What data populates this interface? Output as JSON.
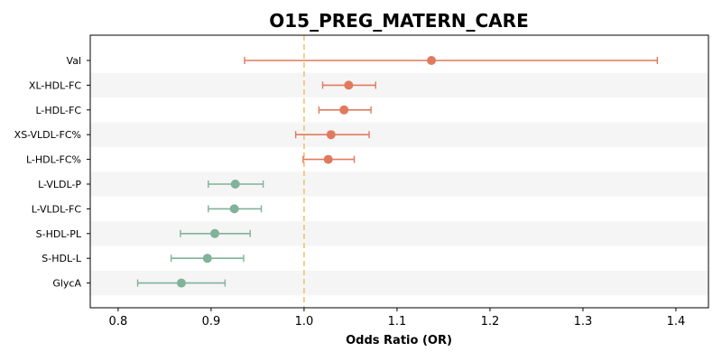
{
  "chart_data": {
    "type": "scatter",
    "title": "O15_PREG_MATERN_CARE",
    "xlabel": "Odds Ratio (OR)",
    "xlim": [
      0.77,
      1.435
    ],
    "xticks": [
      0.8,
      0.9,
      1.0,
      1.1,
      1.2,
      1.3,
      1.4
    ],
    "xtick_labels": [
      "0.8",
      "0.9",
      "1.0",
      "1.1",
      "1.2",
      "1.3",
      "1.4"
    ],
    "reference_line": 1.0,
    "colors": {
      "positive": "#e07a5f",
      "negative": "#81b29a",
      "reference": "#f6bd60",
      "band": "#f5f5f5"
    },
    "categories": [
      "Val",
      "XL-HDL-FC",
      "L-HDL-FC",
      "XS-VLDL-FC%",
      "L-HDL-FC%",
      "L-VLDL-P",
      "L-VLDL-FC",
      "S-HDL-PL",
      "S-HDL-L",
      "GlycA"
    ],
    "or": [
      1.137,
      1.048,
      1.043,
      1.029,
      1.026,
      0.926,
      0.925,
      0.904,
      0.896,
      0.868
    ],
    "ci_low": [
      0.936,
      1.02,
      1.016,
      0.991,
      0.999,
      0.897,
      0.897,
      0.867,
      0.857,
      0.821
    ],
    "ci_high": [
      1.38,
      1.077,
      1.072,
      1.07,
      1.054,
      0.956,
      0.954,
      0.942,
      0.935,
      0.915
    ],
    "grid": false,
    "legend": "none"
  }
}
